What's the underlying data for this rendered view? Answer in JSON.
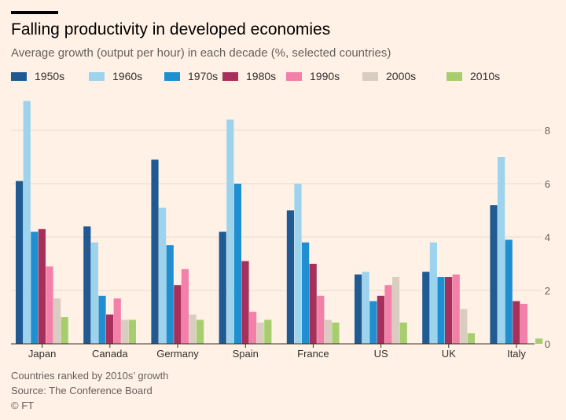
{
  "header": {
    "title": "Falling productivity in developed economies",
    "subtitle": "Average growth (output per hour) in each decade (%, selected countries)"
  },
  "footer": {
    "note": "Countries ranked by 2010s’ growth",
    "source": "Source: The Conference Board",
    "credit": "© FT"
  },
  "chart_data": {
    "type": "bar",
    "categories": [
      "Japan",
      "Canada",
      "Germany",
      "Spain",
      "France",
      "US",
      "UK",
      "Italy"
    ],
    "series": [
      {
        "name": "1950s",
        "color": "#1F5A92",
        "values": [
          6.1,
          4.4,
          6.9,
          4.2,
          5.0,
          2.6,
          2.7,
          5.2
        ]
      },
      {
        "name": "1960s",
        "color": "#9DD3EC",
        "values": [
          9.1,
          3.8,
          5.1,
          8.4,
          6.0,
          2.7,
          3.8,
          7.0
        ]
      },
      {
        "name": "1970s",
        "color": "#1F8FD1",
        "values": [
          4.2,
          1.8,
          3.7,
          6.0,
          3.8,
          1.6,
          2.5,
          3.9
        ]
      },
      {
        "name": "1980s",
        "color": "#A6305B",
        "values": [
          4.3,
          1.1,
          2.2,
          3.1,
          3.0,
          1.8,
          2.5,
          1.6
        ]
      },
      {
        "name": "1990s",
        "color": "#F280A8",
        "values": [
          2.9,
          1.7,
          2.8,
          1.2,
          1.8,
          2.2,
          2.6,
          1.5
        ]
      },
      {
        "name": "2000s",
        "color": "#D9CCC1",
        "values": [
          1.7,
          0.9,
          1.1,
          0.8,
          0.9,
          2.5,
          1.3,
          null
        ]
      },
      {
        "name": "2010s",
        "color": "#A7CE6E",
        "values": [
          1.0,
          0.9,
          0.9,
          0.9,
          0.8,
          0.8,
          0.4,
          0.2
        ]
      }
    ],
    "y_ticks": [
      "0",
      "2",
      "4",
      "6",
      "8"
    ],
    "ylim": [
      0,
      9.5
    ],
    "grid": true,
    "y_axis_side": "right",
    "legend_position": "top"
  }
}
